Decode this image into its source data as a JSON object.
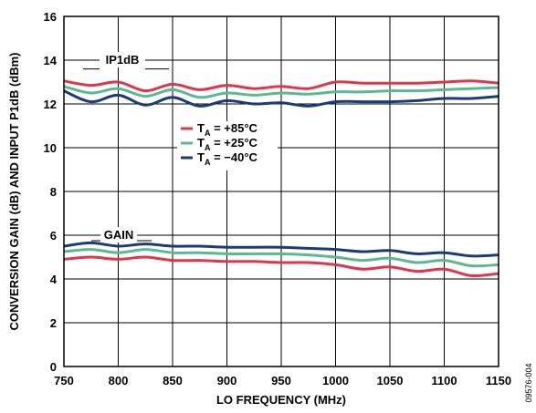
{
  "chart_data": {
    "type": "line",
    "title": "",
    "xlabel": "LO FREQUENCY (MHz)",
    "ylabel": "CONVERSION GAIN (dB) AND INPUT P1dB (dBm)",
    "xlim": [
      750,
      1150
    ],
    "ylim": [
      0,
      16
    ],
    "grid": true,
    "x_ticks": [
      750,
      800,
      850,
      900,
      950,
      1000,
      1050,
      1100,
      1150
    ],
    "y_ticks": [
      0,
      2,
      4,
      6,
      8,
      10,
      12,
      14,
      16
    ],
    "x": [
      750,
      775,
      800,
      825,
      850,
      875,
      900,
      925,
      950,
      975,
      1000,
      1025,
      1050,
      1075,
      1100,
      1125,
      1150
    ],
    "series": [
      {
        "group": "IP1dB",
        "legend": "plus85",
        "color": "#e0364b",
        "values": [
          13.05,
          12.85,
          13.0,
          12.6,
          12.9,
          12.65,
          12.85,
          12.7,
          12.8,
          12.7,
          13.0,
          12.95,
          12.95,
          12.95,
          13.0,
          13.05,
          12.95
        ]
      },
      {
        "group": "IP1dB",
        "legend": "plus25",
        "color": "#5cb88f",
        "values": [
          12.8,
          12.5,
          12.7,
          12.35,
          12.65,
          12.3,
          12.5,
          12.4,
          12.5,
          12.45,
          12.55,
          12.55,
          12.6,
          12.6,
          12.65,
          12.7,
          12.75
        ]
      },
      {
        "group": "IP1dB",
        "legend": "minus40",
        "color": "#1a3a7c",
        "values": [
          12.6,
          12.1,
          12.4,
          11.95,
          12.3,
          11.9,
          12.15,
          12.0,
          12.05,
          11.9,
          12.1,
          12.1,
          12.1,
          12.15,
          12.25,
          12.25,
          12.35
        ]
      },
      {
        "group": "GAIN",
        "legend": "plus85",
        "color": "#e0364b",
        "values": [
          4.9,
          5.0,
          4.9,
          5.0,
          4.85,
          4.85,
          4.8,
          4.8,
          4.75,
          4.75,
          4.65,
          4.45,
          4.55,
          4.35,
          4.45,
          4.15,
          4.25
        ]
      },
      {
        "group": "GAIN",
        "legend": "plus25",
        "color": "#5cb88f",
        "values": [
          5.25,
          5.35,
          5.2,
          5.35,
          5.2,
          5.2,
          5.15,
          5.15,
          5.15,
          5.1,
          5.0,
          4.85,
          4.95,
          4.75,
          4.85,
          4.6,
          4.65
        ]
      },
      {
        "group": "GAIN",
        "legend": "minus40",
        "color": "#1a3a7c",
        "values": [
          5.5,
          5.65,
          5.5,
          5.6,
          5.5,
          5.5,
          5.45,
          5.45,
          5.45,
          5.4,
          5.35,
          5.25,
          5.3,
          5.15,
          5.2,
          5.05,
          5.1
        ]
      }
    ],
    "annotations": {
      "ip1db_label": "IP1dB",
      "gain_label": "GAIN"
    },
    "legend": {
      "placement": "center",
      "entries": [
        {
          "key": "plus85",
          "prefix": "T",
          "subscript": "A",
          "suffix": " = +85°C",
          "color": "#e0364b"
        },
        {
          "key": "plus25",
          "prefix": "T",
          "subscript": "A",
          "suffix": " = +25°C",
          "color": "#5cb88f"
        },
        {
          "key": "minus40",
          "prefix": "T",
          "subscript": "A",
          "suffix": " = −40°C",
          "color": "#1a3a7c"
        }
      ]
    },
    "figure_id": "09576-004"
  }
}
